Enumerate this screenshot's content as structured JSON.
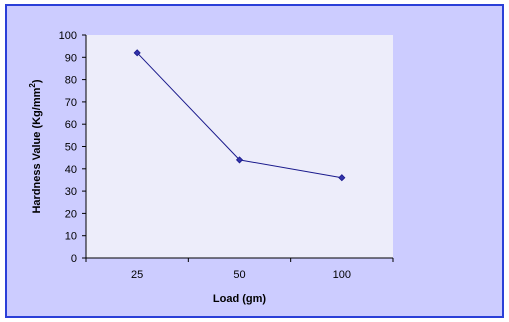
{
  "chart_data": {
    "type": "line",
    "categories": [
      "25",
      "50",
      "100"
    ],
    "series": [
      {
        "values": [
          92,
          44,
          36
        ]
      }
    ],
    "xlabel": "Load (gm)",
    "ylabel_main": "Hardness Value (Kg/mm",
    "ylabel_sup": "2",
    "ylabel_close": ")",
    "ylim": [
      0,
      100
    ],
    "ytick_step": 10,
    "grid": false,
    "legend": "none"
  },
  "colors": {
    "background": "#ccccff",
    "plot_area": "#ededfa",
    "border": "#2a3fd8",
    "line": "#1a1a8c",
    "marker": "#3333aa"
  }
}
